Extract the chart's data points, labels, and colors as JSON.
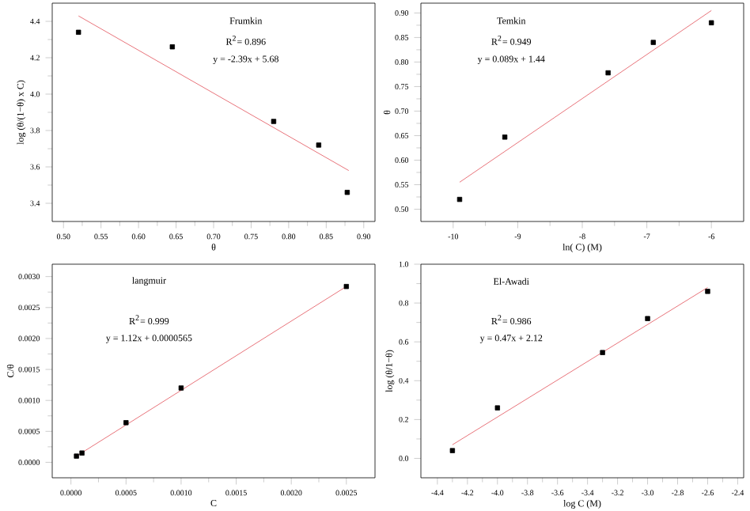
{
  "chart_data": [
    {
      "type": "scatter",
      "xlabel": "θ",
      "ylabel": "log (θ/(1−θ) x C)",
      "marker": "square",
      "annotations": [
        "Frumkin",
        "R$^{2}$= 0.896",
        "y = -2.39x + 5.68"
      ],
      "xlim": [
        0.485,
        0.915
      ],
      "ylim": [
        3.3,
        4.5
      ],
      "xticks": [
        {
          "value": 0.5,
          "label": "0.50"
        },
        {
          "value": 0.55,
          "label": "0.55"
        },
        {
          "value": 0.6,
          "label": "0.60"
        },
        {
          "value": 0.65,
          "label": "0.65"
        },
        {
          "value": 0.7,
          "label": "0.70"
        },
        {
          "value": 0.75,
          "label": "0.75"
        },
        {
          "value": 0.8,
          "label": "0.80"
        },
        {
          "value": 0.85,
          "label": "0.85"
        },
        {
          "value": 0.9,
          "label": "0.90"
        }
      ],
      "yticks": [
        3.4,
        3.6,
        3.8,
        {
          "value": 4.0,
          "label": "4.0"
        },
        4.2,
        4.4
      ],
      "series": [
        {
          "x": [
            0.52,
            0.645,
            0.78,
            0.84,
            0.878
          ],
          "values": [
            4.34,
            4.26,
            3.85,
            3.72,
            3.46
          ],
          "color": "#000000"
        },
        {
          "type": "line",
          "marker": "none",
          "x": [
            0.52,
            0.88
          ],
          "values": [
            4.43,
            3.58
          ],
          "color": "#e8737a"
        }
      ]
    },
    {
      "type": "scatter",
      "xlabel": "ln( C) (M)",
      "ylabel": "θ",
      "marker": "square",
      "annotations": [
        "Temkin",
        "R$^{2}$= 0.949",
        "y = 0.089x + 1.44"
      ],
      "xlim": [
        -10.5,
        -5.5
      ],
      "ylim": [
        0.475,
        0.92
      ],
      "xticks": [
        -10,
        -9,
        -8,
        -7,
        -6
      ],
      "yticks": [
        {
          "value": 0.5,
          "label": "0.50"
        },
        0.55,
        {
          "value": 0.6,
          "label": "0.60"
        },
        0.65,
        {
          "value": 0.7,
          "label": "0.70"
        },
        0.75,
        {
          "value": 0.8,
          "label": "0.80"
        },
        0.85,
        {
          "value": 0.9,
          "label": "0.90"
        }
      ],
      "series": [
        {
          "x": [
            -9.9,
            -9.2,
            -7.6,
            -6.9,
            -6.0
          ],
          "values": [
            0.52,
            0.647,
            0.778,
            0.84,
            0.88
          ],
          "color": "#000000"
        },
        {
          "type": "line",
          "marker": "none",
          "x": [
            -9.9,
            -6.0
          ],
          "values": [
            0.555,
            0.905
          ],
          "color": "#e8737a"
        }
      ]
    },
    {
      "type": "scatter",
      "xlabel": "C",
      "ylabel": "C/θ",
      "marker": "square",
      "annotations": [
        "langmuir",
        "R$^{2}$= 0.999",
        "y = 1.12x + 0.0000565"
      ],
      "xlim": [
        -0.00017,
        0.00276
      ],
      "ylim": [
        -0.00025,
        0.0032
      ],
      "xticks": [
        {
          "value": 0,
          "label": "0.0000"
        },
        {
          "value": 0.0005,
          "label": "0.0005"
        },
        {
          "value": 0.001,
          "label": "0.0010"
        },
        {
          "value": 0.0015,
          "label": "0.0015"
        },
        {
          "value": 0.002,
          "label": "0.0020"
        },
        {
          "value": 0.0025,
          "label": "0.0025"
        }
      ],
      "yticks": [
        {
          "value": 0,
          "label": "0.0000"
        },
        {
          "value": 0.0005,
          "label": "0.0005"
        },
        {
          "value": 0.001,
          "label": "0.0010"
        },
        {
          "value": 0.0015,
          "label": "0.0015"
        },
        {
          "value": 0.002,
          "label": "0.0020"
        },
        {
          "value": 0.0025,
          "label": "0.0025"
        },
        {
          "value": 0.003,
          "label": "0.0030"
        }
      ],
      "series": [
        {
          "x": [
            5e-05,
            0.0001,
            0.0005,
            0.001,
            0.0025
          ],
          "values": [
            0.0001,
            0.00015,
            0.00064,
            0.0012,
            0.00284
          ],
          "color": "#000000"
        },
        {
          "type": "line",
          "marker": "none",
          "x": [
            5e-05,
            0.0025
          ],
          "values": [
            0.0001,
            0.00284
          ],
          "color": "#e8737a"
        }
      ]
    },
    {
      "type": "scatter",
      "xlabel": "log C (M)",
      "ylabel": "log (θ/1−θ)",
      "marker": "square",
      "annotations": [
        "El-Awadi",
        "R$^{2}$= 0.986",
        "y = 0.47x + 2.12"
      ],
      "xlim": [
        -4.51,
        -2.36
      ],
      "ylim": [
        -0.1,
        1.0
      ],
      "xticks": [
        -4.4,
        -4.2,
        {
          "value": -4.0,
          "label": "-4.0"
        },
        -3.8,
        -3.6,
        -3.4,
        -3.2,
        {
          "value": -3.0,
          "label": "-3.0"
        },
        -2.8,
        -2.6,
        -2.4
      ],
      "yticks": [
        {
          "value": 0,
          "label": "0.0"
        },
        0.2,
        0.4,
        0.6,
        0.8,
        {
          "value": 1.0,
          "label": "1.0"
        }
      ],
      "series": [
        {
          "x": [
            -4.3,
            -4.0,
            -3.3,
            -3.0,
            -2.6
          ],
          "values": [
            0.04,
            0.26,
            0.545,
            0.72,
            0.86
          ],
          "color": "#000000"
        },
        {
          "type": "line",
          "marker": "none",
          "x": [
            -4.3,
            -2.6
          ],
          "values": [
            0.07,
            0.88
          ],
          "color": "#e8737a"
        }
      ]
    }
  ]
}
